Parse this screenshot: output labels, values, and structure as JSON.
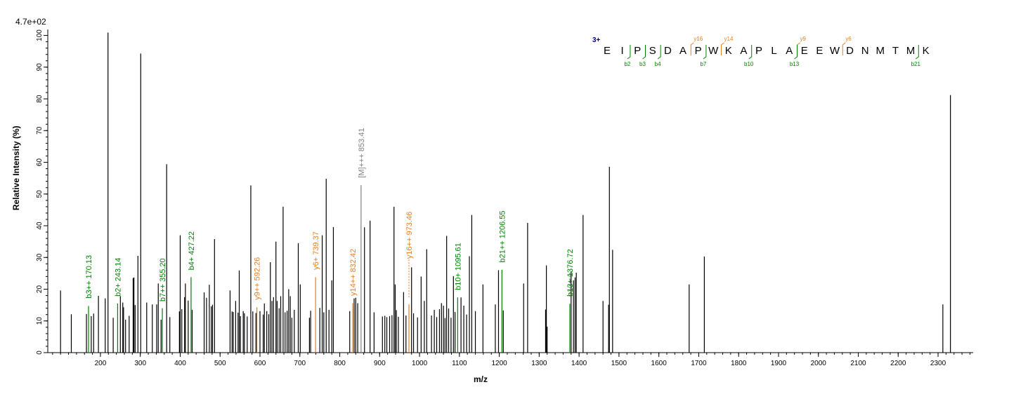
{
  "chart_data": {
    "type": "bar",
    "subtype": "ms-ms-spectrum",
    "scale_label": "4.7e+02",
    "xlabel": "m/z",
    "ylabel_words": [
      "Relative",
      "Intensity (%)"
    ],
    "xlim": [
      68,
      2388
    ],
    "ylim": [
      0,
      101
    ],
    "x_ticks": [
      200,
      300,
      400,
      500,
      600,
      700,
      800,
      900,
      1000,
      1100,
      1200,
      1300,
      1400,
      1500,
      1600,
      1700,
      1800,
      1900,
      2000,
      2100,
      2200,
      2300
    ],
    "x_minor_step": 20,
    "y_ticks": [
      0,
      10,
      20,
      30,
      40,
      50,
      60,
      70,
      80,
      90,
      100
    ],
    "peaks": [
      [
        100,
        19.6
      ],
      [
        127,
        12.1
      ],
      [
        165,
        12.2
      ],
      [
        170.13,
        14.7
      ],
      [
        177,
        11.5
      ],
      [
        183,
        12.3
      ],
      [
        195,
        17.9
      ],
      [
        212,
        17.1
      ],
      [
        219,
        100.9
      ],
      [
        232,
        11.0
      ],
      [
        243.14,
        15.5
      ],
      [
        250,
        17.8
      ],
      [
        256,
        15.8
      ],
      [
        258,
        14.3
      ],
      [
        263,
        10.4
      ],
      [
        272,
        11.6
      ],
      [
        282,
        23.5
      ],
      [
        284,
        23.7
      ],
      [
        287,
        15.0
      ],
      [
        294,
        30.5
      ],
      [
        301,
        94.3
      ],
      [
        316,
        15.8
      ],
      [
        330,
        15.2
      ],
      [
        341,
        15.2
      ],
      [
        345,
        21.8
      ],
      [
        352,
        10.4
      ],
      [
        355.2,
        14.0
      ],
      [
        366,
        59.4
      ],
      [
        374,
        11.2
      ],
      [
        398,
        13.0
      ],
      [
        400,
        37.0
      ],
      [
        404,
        13.7
      ],
      [
        411,
        17.5
      ],
      [
        413,
        21.8
      ],
      [
        420,
        16.4
      ],
      [
        427.22,
        23.8
      ],
      [
        430,
        13.5
      ],
      [
        460,
        19.0
      ],
      [
        466,
        17.3
      ],
      [
        473,
        21.4
      ],
      [
        478,
        14.6
      ],
      [
        481,
        15.1
      ],
      [
        486,
        35.8
      ],
      [
        525,
        19.6
      ],
      [
        530,
        13.0
      ],
      [
        533,
        12.8
      ],
      [
        539,
        16.3
      ],
      [
        545,
        12.6
      ],
      [
        548,
        25.9
      ],
      [
        551,
        11.5
      ],
      [
        558,
        13.1
      ],
      [
        561,
        12.4
      ],
      [
        568,
        11.4
      ],
      [
        577,
        52.7
      ],
      [
        582,
        13.0
      ],
      [
        590,
        12.5
      ],
      [
        592.26,
        14.3
      ],
      [
        600,
        13.1
      ],
      [
        608,
        12.0
      ],
      [
        611,
        15.5
      ],
      [
        617,
        13.1
      ],
      [
        622,
        12.1
      ],
      [
        626,
        28.5
      ],
      [
        630,
        16.3
      ],
      [
        634,
        17.5
      ],
      [
        640,
        35.0
      ],
      [
        643,
        16.3
      ],
      [
        648,
        14.0
      ],
      [
        652,
        17.8
      ],
      [
        658,
        46.0
      ],
      [
        663,
        12.7
      ],
      [
        668,
        13.2
      ],
      [
        672,
        20.0
      ],
      [
        676,
        17.8
      ],
      [
        680,
        11.0
      ],
      [
        686,
        13.5
      ],
      [
        696,
        34.5
      ],
      [
        701,
        21.5
      ],
      [
        724,
        11.0
      ],
      [
        727,
        13.2
      ],
      [
        739.37,
        23.8
      ],
      [
        750,
        14.1
      ],
      [
        756,
        37.0
      ],
      [
        760,
        12.7
      ],
      [
        766,
        54.8
      ],
      [
        773,
        13.5
      ],
      [
        780,
        22.8
      ],
      [
        784,
        39.6
      ],
      [
        825,
        13.1
      ],
      [
        832.42,
        15.6
      ],
      [
        836,
        17.1
      ],
      [
        840,
        17.3
      ],
      [
        845,
        15.6
      ],
      [
        853.41,
        52.8
      ],
      [
        862,
        39.5
      ],
      [
        876,
        41.6
      ],
      [
        886,
        12.7
      ],
      [
        907,
        11.4
      ],
      [
        913,
        11.6
      ],
      [
        918,
        11.2
      ],
      [
        925,
        11.5
      ],
      [
        931,
        11.8
      ],
      [
        936,
        46.0
      ],
      [
        939,
        21.5
      ],
      [
        942,
        13.4
      ],
      [
        947,
        11.3
      ],
      [
        960,
        19.1
      ],
      [
        966,
        11.7
      ],
      [
        973.46,
        15.2
      ],
      [
        980,
        26.9
      ],
      [
        985,
        12.4
      ],
      [
        995,
        11.1
      ],
      [
        1004,
        24.0
      ],
      [
        1012,
        16.3
      ],
      [
        1018,
        32.6
      ],
      [
        1030,
        11.7
      ],
      [
        1037,
        13.5
      ],
      [
        1043,
        11.2
      ],
      [
        1050,
        13.7
      ],
      [
        1055,
        15.6
      ],
      [
        1060,
        14.8
      ],
      [
        1064,
        10.9
      ],
      [
        1068,
        36.8
      ],
      [
        1073,
        13.9
      ],
      [
        1079,
        11.0
      ],
      [
        1085,
        24.1
      ],
      [
        1089,
        12.8
      ],
      [
        1095.61,
        17.4
      ],
      [
        1104,
        17.4
      ],
      [
        1111,
        14.8
      ],
      [
        1118,
        12.0
      ],
      [
        1125,
        30.4
      ],
      [
        1131,
        43.4
      ],
      [
        1140,
        13.1
      ],
      [
        1159,
        21.5
      ],
      [
        1190,
        15.2
      ],
      [
        1198,
        26.0
      ],
      [
        1206.55,
        26.1
      ],
      [
        1210,
        13.3
      ],
      [
        1261,
        21.8
      ],
      [
        1271,
        40.9
      ],
      [
        1316,
        13.6
      ],
      [
        1318,
        27.5
      ],
      [
        1320,
        8.2
      ],
      [
        1376.72,
        15.4
      ],
      [
        1380,
        25.6
      ],
      [
        1386,
        22.8
      ],
      [
        1390,
        23.7
      ],
      [
        1393,
        25.2
      ],
      [
        1410,
        43.4
      ],
      [
        1460,
        16.3
      ],
      [
        1474,
        15.1
      ],
      [
        1476,
        58.6
      ],
      [
        1484,
        32.4
      ],
      [
        1676,
        21.5
      ],
      [
        1714,
        30.3
      ],
      [
        2312,
        15.2
      ],
      [
        2331,
        81.2
      ]
    ],
    "peak_colors": {
      "default": "#000000",
      "b_ion": "#008000",
      "y_ion": "#e67e22",
      "precursor": "#808080"
    },
    "annotations": [
      {
        "mz": 170.13,
        "text": "b3++ 170.13",
        "ion": "b",
        "label_top": 17.1,
        "dashed_to": 0
      },
      {
        "mz": 243.14,
        "text": "b2+ 243.14",
        "ion": "b",
        "label_top": 17.7,
        "dashed_to": 0
      },
      {
        "mz": 355.2,
        "text": "b7++ 355.20",
        "ion": "b",
        "label_top": 16.1,
        "dashed_to": 0
      },
      {
        "mz": 427.22,
        "text": "b4+ 427.22",
        "ion": "b",
        "label_top": 26.0,
        "dashed_to": 0
      },
      {
        "mz": 592.26,
        "text": "y9++ 592.26",
        "ion": "y",
        "label_top": 16.6,
        "dashed_to": 0
      },
      {
        "mz": 739.37,
        "text": "y6+ 739.37",
        "ion": "y",
        "label_top": 26.1,
        "dashed_to": 0
      },
      {
        "mz": 832.42,
        "text": "y14++ 832.42",
        "ion": "y",
        "label_top": 17.9,
        "dashed_to": 0
      },
      {
        "mz": 853.41,
        "text": "[M]+++ 853.41",
        "ion": "precursor",
        "label_top": 55.1,
        "dashed_to": 0
      },
      {
        "mz": 973.46,
        "text": "y16++ 973.46",
        "ion": "y",
        "label_top": 29.6,
        "dashed_to": 17.4
      },
      {
        "mz": 1095.61,
        "text": "b10+ 1095.61",
        "ion": "b",
        "label_top": 19.7,
        "dashed_to": 0
      },
      {
        "mz": 1206.55,
        "text": "b21++ 1206.55",
        "ion": "b",
        "label_top": 28.4,
        "dashed_to": 0
      },
      {
        "mz": 1376.72,
        "text": "b13+ 1376.72",
        "ion": "b",
        "label_top": 17.7,
        "dashed_to": 25.1
      }
    ]
  },
  "sequence": {
    "charge": "3+",
    "residues": [
      "E",
      "I",
      "P",
      "S",
      "D",
      "A",
      "P",
      "W",
      "K",
      "A",
      "P",
      "L",
      "A",
      "E",
      "E",
      "W",
      "D",
      "N",
      "M",
      "T",
      "M",
      "K"
    ],
    "y_ions": [
      {
        "after": 6,
        "label": "y16"
      },
      {
        "after": 8,
        "label": "y14"
      },
      {
        "after": 13,
        "label": "y9"
      },
      {
        "after": 16,
        "label": "y6"
      }
    ],
    "b_ions": [
      {
        "after": 2,
        "label": "b2"
      },
      {
        "after": 3,
        "label": "b3"
      },
      {
        "after": 4,
        "label": "b4"
      },
      {
        "after": 7,
        "label": "b7"
      },
      {
        "after": 10,
        "label": "b10"
      },
      {
        "after": 13,
        "label": "b13"
      },
      {
        "after": 21,
        "label": "b21"
      }
    ]
  }
}
